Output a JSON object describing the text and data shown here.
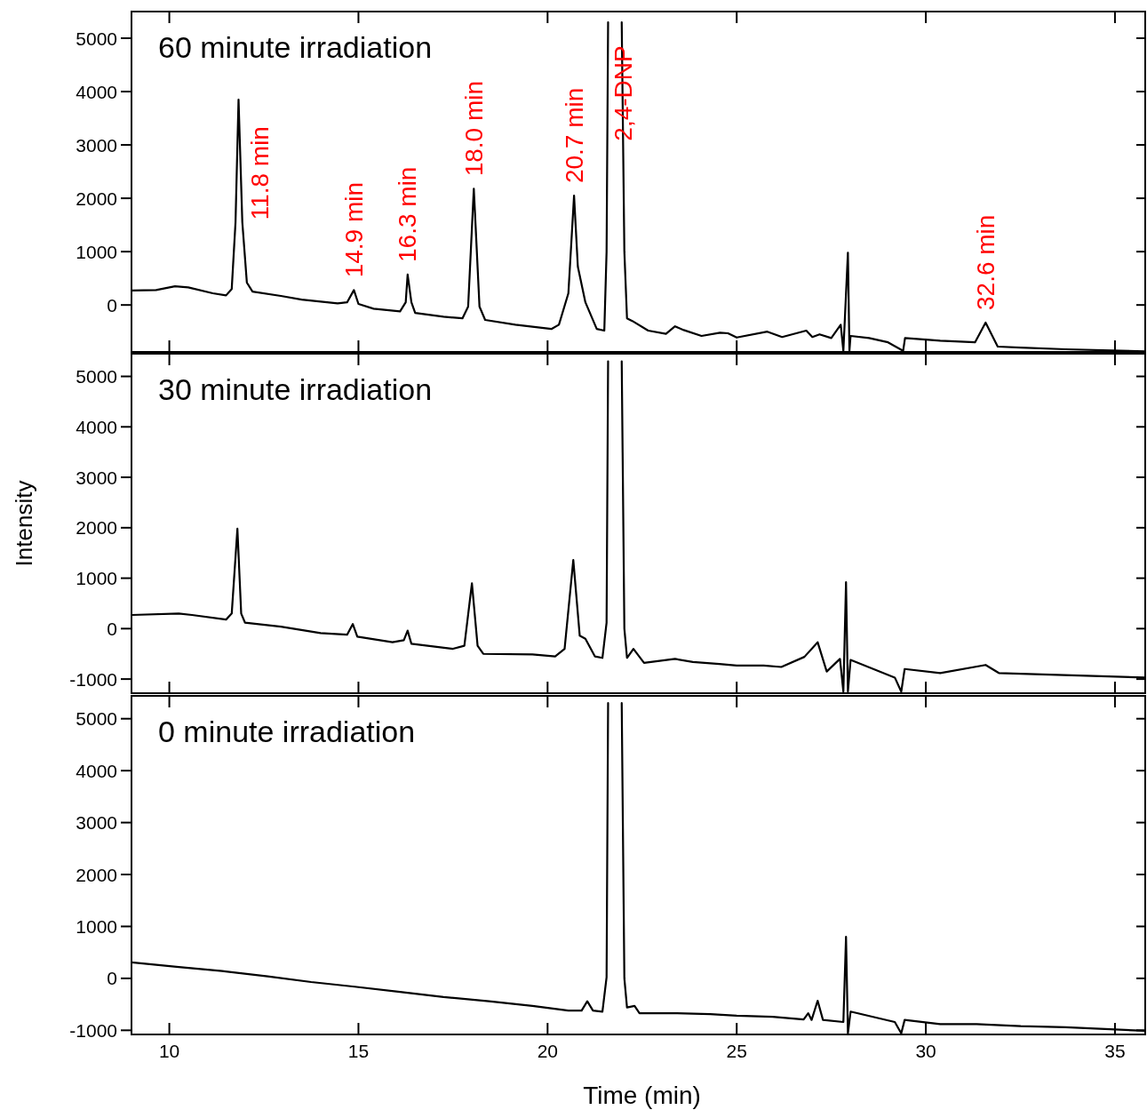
{
  "chart_data": [
    {
      "type": "line",
      "title": "60 minute irradiation",
      "xlim": [
        9.0,
        35.8
      ],
      "xticks": [
        10,
        15,
        20,
        25,
        30,
        35
      ],
      "ylim": [
        -880,
        5500
      ],
      "yticks": [
        0,
        1000,
        2000,
        3000,
        4000,
        5000
      ],
      "tick_labels": "y",
      "x": [
        9.0,
        9.65,
        10.15,
        10.5,
        11.15,
        11.5,
        11.65,
        11.75,
        11.83,
        11.93,
        12.05,
        12.2,
        12.95,
        13.5,
        14.45,
        14.7,
        14.88,
        15.0,
        15.4,
        16.1,
        16.25,
        16.3,
        16.4,
        16.5,
        17.25,
        17.75,
        17.9,
        18.05,
        18.2,
        18.35,
        19.15,
        20.1,
        20.3,
        20.55,
        20.7,
        20.8,
        21.0,
        21.3,
        21.5,
        21.56,
        21.6,
        21.78,
        21.96,
        22.03,
        22.1,
        22.24,
        22.66,
        23.13,
        23.37,
        23.6,
        24.07,
        24.56,
        24.77,
        25.0,
        25.81,
        26.2,
        26.84,
        27.0,
        27.19,
        27.5,
        27.75,
        27.82,
        27.94,
        27.98,
        28.01,
        28.5,
        29.0,
        29.4,
        29.45,
        30.0,
        30.38,
        31.3,
        31.58,
        31.9,
        32.5,
        33.69,
        35.8
      ],
      "series": [
        {
          "color": "#000000",
          "values": [
            270,
            280,
            350,
            330,
            220,
            180,
            300,
            1550,
            3850,
            1550,
            420,
            250,
            170,
            100,
            30,
            50,
            280,
            20,
            -70,
            -120,
            50,
            570,
            50,
            -150,
            -220,
            -250,
            -30,
            2180,
            -30,
            -280,
            -370,
            -450,
            -370,
            220,
            2050,
            720,
            50,
            -450,
            -480,
            1000,
            5300,
            null,
            5300,
            1000,
            -250,
            -300,
            -480,
            -540,
            -400,
            -470,
            -580,
            -520,
            -530,
            -610,
            -500,
            -600,
            -480,
            -600,
            -550,
            -620,
            -370,
            -860,
            980,
            -860,
            -580,
            -620,
            -700,
            -860,
            -620,
            -650,
            -670,
            -700,
            -330,
            -780,
            -800,
            -830,
            -870
          ]
        }
      ],
      "annotations": [
        {
          "text": "11.8 min",
          "x": 11.83,
          "y": 3850
        },
        {
          "text": "14.9 min",
          "x": 14.88,
          "y": 280
        },
        {
          "text": "16.3 min",
          "x": 16.3,
          "y": 570
        },
        {
          "text": "18.0 min",
          "x": 18.05,
          "y": 2180
        },
        {
          "text": "20.7 min",
          "x": 20.7,
          "y": 2050
        },
        {
          "text": "2,4-DNP",
          "x": 22.0,
          "y": 2840
        },
        {
          "text": "32.6 min",
          "x": 31.58,
          "y": -330
        }
      ]
    },
    {
      "type": "line",
      "title": "30 minute irradiation",
      "ylabel": "Intensity",
      "xlim": [
        9.0,
        35.8
      ],
      "xticks": [
        10,
        15,
        20,
        25,
        30,
        35
      ],
      "ylim": [
        -1280,
        5450
      ],
      "yticks": [
        -1000,
        0,
        1000,
        2000,
        3000,
        4000,
        5000
      ],
      "tick_labels": "y",
      "x": [
        9.0,
        10.25,
        10.6,
        11.5,
        11.65,
        11.8,
        11.9,
        12.0,
        12.95,
        14.0,
        14.7,
        14.85,
        14.97,
        15.9,
        16.2,
        16.3,
        16.4,
        17.5,
        17.8,
        18.0,
        18.15,
        18.3,
        19.6,
        20.2,
        20.45,
        20.68,
        20.85,
        21.0,
        21.25,
        21.45,
        21.56,
        21.6,
        21.78,
        21.96,
        22.03,
        22.1,
        22.27,
        22.55,
        23.37,
        23.84,
        24.54,
        25.0,
        25.71,
        26.18,
        26.79,
        27.14,
        27.38,
        27.73,
        27.82,
        27.89,
        27.94,
        28.01,
        29.18,
        29.35,
        29.44,
        30.38,
        31.58,
        31.93,
        35.8
      ],
      "series": [
        {
          "color": "#000000",
          "values": [
            270,
            300,
            270,
            180,
            300,
            1980,
            300,
            120,
            40,
            -90,
            -120,
            90,
            -160,
            -270,
            -230,
            -40,
            -300,
            -400,
            -340,
            900,
            -340,
            -500,
            -510,
            -550,
            -400,
            1360,
            -140,
            -200,
            -550,
            -580,
            120,
            5300,
            null,
            5300,
            0,
            -580,
            -400,
            -680,
            -600,
            -660,
            -700,
            -730,
            -730,
            -760,
            -560,
            -270,
            -850,
            -600,
            -1250,
            920,
            -1250,
            -620,
            -970,
            -1250,
            -800,
            -880,
            -720,
            -880,
            -970
          ]
        }
      ]
    },
    {
      "type": "line",
      "title": "0 minute irradiation",
      "xlabel": "Time (min)",
      "xlim": [
        9.0,
        35.8
      ],
      "xticks": [
        10,
        15,
        20,
        25,
        30,
        35
      ],
      "ylim": [
        -1080,
        5440
      ],
      "yticks": [
        -1000,
        0,
        1000,
        2000,
        3000,
        4000,
        5000
      ],
      "x": [
        9.0,
        10.25,
        11.4,
        12.6,
        13.75,
        14.9,
        16.1,
        17.25,
        18.45,
        19.6,
        20.55,
        20.9,
        21.05,
        21.2,
        21.45,
        21.56,
        21.6,
        21.78,
        21.96,
        22.03,
        22.1,
        22.3,
        22.43,
        23.37,
        24.3,
        25.0,
        25.95,
        26.77,
        26.89,
        26.98,
        27.14,
        27.28,
        27.82,
        27.89,
        27.94,
        28.01,
        29.18,
        29.35,
        29.44,
        30.38,
        31.34,
        32.51,
        33.69,
        35.8
      ],
      "series": [
        {
          "color": "#000000",
          "values": [
            310,
            220,
            140,
            40,
            -70,
            -160,
            -260,
            -360,
            -440,
            -530,
            -620,
            -620,
            -440,
            -620,
            -640,
            20,
            5300,
            null,
            5300,
            0,
            -560,
            -530,
            -670,
            -670,
            -690,
            -720,
            -740,
            -790,
            -670,
            -800,
            -430,
            -800,
            -840,
            800,
            -1060,
            -640,
            -840,
            -1060,
            -800,
            -880,
            -880,
            -920,
            -940,
            -1010
          ]
        }
      ]
    }
  ]
}
